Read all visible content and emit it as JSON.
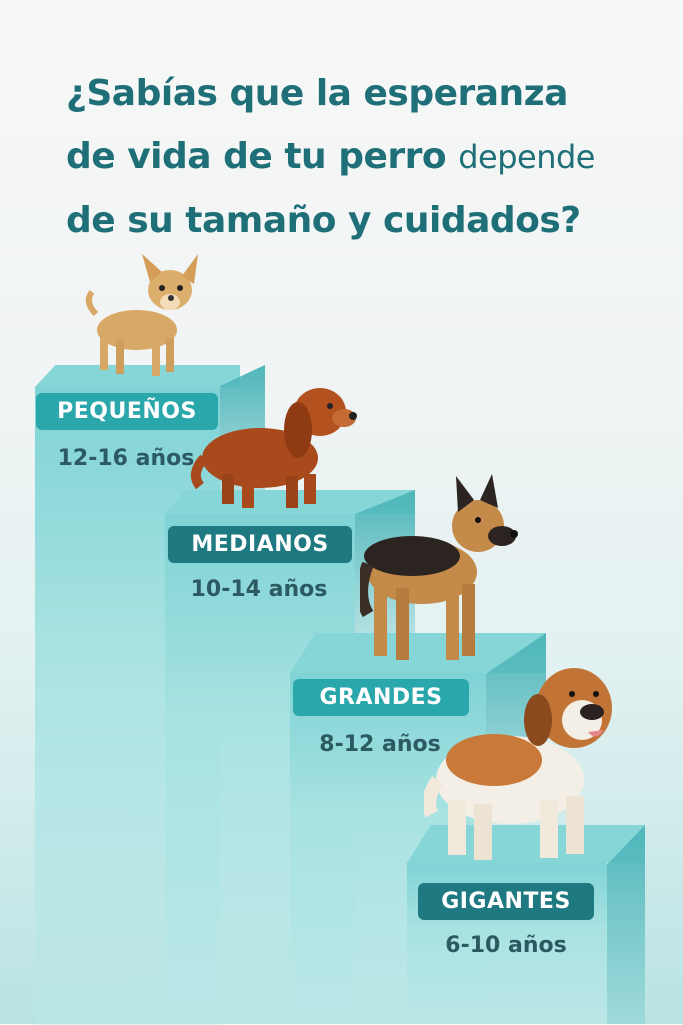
{
  "title": {
    "line1": "¿Sabías que la esperanza",
    "line2_bold": "de vida de tu perro",
    "line2_light": "depende",
    "line3": "de su tamaño y cuidados?"
  },
  "steps": [
    {
      "label": "PEQUEÑOS",
      "years": "12-16 años",
      "dog": "chihuahua-image"
    },
    {
      "label": "MEDIANOS",
      "years": "10-14 años",
      "dog": "cocker-spaniel-image"
    },
    {
      "label": "GRANDES",
      "years": "8-12 años",
      "dog": "german-shepherd-image"
    },
    {
      "label": "GIGANTES",
      "years": "6-10 años",
      "dog": "saint-bernard-image"
    }
  ],
  "colors": {
    "title": "#1f6f78",
    "label_bg": "#2aa7ab",
    "label_bg_dark": "#1e7a80",
    "step": "#7bd0d2"
  }
}
